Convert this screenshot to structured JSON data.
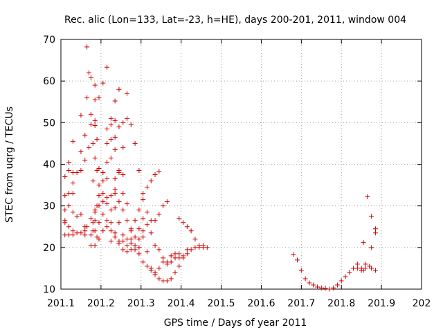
{
  "chart_data": {
    "type": "scatter",
    "title": "Rec. alic (Lon=133, Lat=-23, h=HE), days 200-201, 2011, window 004",
    "xlabel": "GPS time / Days of year 2011",
    "ylabel": "STEC from uqrg / TECUs",
    "xlim": [
      201.1,
      202
    ],
    "ylim": [
      10,
      70
    ],
    "x_ticks": [
      201.1,
      201.2,
      201.3,
      201.4,
      201.5,
      201.6,
      201.7,
      201.8,
      201.9,
      202
    ],
    "x_tick_labels": [
      "201.1",
      "201.2",
      "201.3",
      "201.4",
      "201.5",
      "201.6",
      "201.7",
      "201.8",
      "201.9",
      "202"
    ],
    "y_ticks": [
      10,
      20,
      30,
      40,
      50,
      60,
      70
    ],
    "y_tick_labels": [
      "10",
      "20",
      "30",
      "40",
      "50",
      "60",
      "70"
    ],
    "grid": true,
    "marker": "plus",
    "marker_color": "#cc0000",
    "points": [
      [
        201.11,
        37.0
      ],
      [
        201.11,
        32.5
      ],
      [
        201.11,
        29.0
      ],
      [
        201.11,
        26.5
      ],
      [
        201.11,
        26.0
      ],
      [
        201.11,
        23.0
      ],
      [
        201.12,
        40.5
      ],
      [
        201.12,
        38.5
      ],
      [
        201.12,
        33.0
      ],
      [
        201.12,
        30.0
      ],
      [
        201.12,
        25.0
      ],
      [
        201.12,
        23.0
      ],
      [
        201.13,
        45.5
      ],
      [
        201.13,
        38.0
      ],
      [
        201.13,
        35.5
      ],
      [
        201.13,
        33.0
      ],
      [
        201.13,
        28.5
      ],
      [
        201.13,
        24.0
      ],
      [
        201.13,
        23.0
      ],
      [
        201.14,
        38.0
      ],
      [
        201.14,
        27.5
      ],
      [
        201.14,
        23.5
      ],
      [
        201.15,
        51.8
      ],
      [
        201.15,
        43.0
      ],
      [
        201.15,
        38.5
      ],
      [
        201.15,
        28.0
      ],
      [
        201.15,
        23.5
      ],
      [
        201.16,
        47.0
      ],
      [
        201.16,
        41.0
      ],
      [
        201.16,
        25.0
      ],
      [
        201.16,
        24.0
      ],
      [
        201.16,
        23.0
      ],
      [
        201.165,
        68.2
      ],
      [
        201.165,
        56.0
      ],
      [
        201.165,
        25.0
      ],
      [
        201.17,
        62.0
      ],
      [
        201.17,
        44.0
      ],
      [
        201.175,
        60.8
      ],
      [
        201.175,
        52.0
      ],
      [
        201.175,
        49.5
      ],
      [
        201.175,
        27.0
      ],
      [
        201.175,
        23.0
      ],
      [
        201.175,
        20.5
      ],
      [
        201.18,
        45.0
      ],
      [
        201.18,
        36.0
      ],
      [
        201.18,
        26.0
      ],
      [
        201.18,
        24.0
      ],
      [
        201.185,
        59.0
      ],
      [
        201.185,
        55.5
      ],
      [
        201.185,
        50.5
      ],
      [
        201.185,
        49.3
      ],
      [
        201.185,
        41.5
      ],
      [
        201.185,
        29.0
      ],
      [
        201.185,
        28.5
      ],
      [
        201.185,
        26.5
      ],
      [
        201.185,
        24.0
      ],
      [
        201.185,
        20.5
      ],
      [
        201.19,
        46.0
      ],
      [
        201.19,
        38.5
      ],
      [
        201.19,
        30.0
      ],
      [
        201.19,
        22.5
      ],
      [
        201.195,
        56.0
      ],
      [
        201.195,
        39.0
      ],
      [
        201.195,
        35.0
      ],
      [
        201.195,
        32.5
      ],
      [
        201.195,
        30.0
      ],
      [
        201.195,
        26.0
      ],
      [
        201.195,
        22.0
      ],
      [
        201.205,
        59.5
      ],
      [
        201.205,
        38.0
      ],
      [
        201.205,
        36.0
      ],
      [
        201.205,
        33.0
      ],
      [
        201.205,
        31.0
      ],
      [
        201.205,
        28.0
      ],
      [
        201.205,
        24.0
      ],
      [
        201.215,
        63.3
      ],
      [
        201.215,
        48.5
      ],
      [
        201.215,
        45.0
      ],
      [
        201.215,
        40.5
      ],
      [
        201.215,
        36.5
      ],
      [
        201.215,
        32.0
      ],
      [
        201.215,
        30.5
      ],
      [
        201.215,
        26.5
      ],
      [
        201.215,
        25.0
      ],
      [
        201.225,
        51.0
      ],
      [
        201.225,
        49.5
      ],
      [
        201.225,
        46.0
      ],
      [
        201.225,
        41.5
      ],
      [
        201.225,
        32.5
      ],
      [
        201.225,
        29.0
      ],
      [
        201.225,
        26.0
      ],
      [
        201.225,
        24.0
      ],
      [
        201.225,
        21.5
      ],
      [
        201.235,
        55.2
      ],
      [
        201.235,
        50.5
      ],
      [
        201.235,
        46.5
      ],
      [
        201.235,
        43.5
      ],
      [
        201.235,
        36.5
      ],
      [
        201.235,
        34.0
      ],
      [
        201.235,
        33.0
      ],
      [
        201.235,
        29.5
      ],
      [
        201.235,
        23.5
      ],
      [
        201.235,
        22.5
      ],
      [
        201.245,
        58.0
      ],
      [
        201.245,
        49.0
      ],
      [
        201.245,
        38.5
      ],
      [
        201.245,
        38.0
      ],
      [
        201.245,
        31.0
      ],
      [
        201.245,
        26.0
      ],
      [
        201.245,
        21.5
      ],
      [
        201.245,
        21.0
      ],
      [
        201.255,
        50.0
      ],
      [
        201.255,
        44.0
      ],
      [
        201.255,
        37.5
      ],
      [
        201.255,
        33.0
      ],
      [
        201.255,
        29.0
      ],
      [
        201.255,
        23.0
      ],
      [
        201.255,
        21.5
      ],
      [
        201.255,
        19.5
      ],
      [
        201.265,
        57.0
      ],
      [
        201.265,
        51.0
      ],
      [
        201.265,
        30.5
      ],
      [
        201.265,
        26.5
      ],
      [
        201.265,
        22.0
      ],
      [
        201.265,
        20.5
      ],
      [
        201.265,
        19.0
      ],
      [
        201.275,
        49.5
      ],
      [
        201.275,
        24.5
      ],
      [
        201.275,
        24.0
      ],
      [
        201.275,
        22.0
      ],
      [
        201.275,
        21.0
      ],
      [
        201.275,
        19.5
      ],
      [
        201.285,
        45.0
      ],
      [
        201.285,
        26.5
      ],
      [
        201.285,
        22.5
      ],
      [
        201.285,
        20.5
      ],
      [
        201.285,
        19.5
      ],
      [
        201.295,
        38.5
      ],
      [
        201.295,
        29.0
      ],
      [
        201.295,
        24.5
      ],
      [
        201.295,
        22.0
      ],
      [
        201.295,
        20.0
      ],
      [
        201.295,
        18.5
      ],
      [
        201.305,
        33.0
      ],
      [
        201.305,
        31.5
      ],
      [
        201.305,
        27.0
      ],
      [
        201.305,
        24.0
      ],
      [
        201.305,
        22.5
      ],
      [
        201.305,
        16.5
      ],
      [
        201.315,
        34.5
      ],
      [
        201.315,
        28.5
      ],
      [
        201.315,
        25.5
      ],
      [
        201.315,
        19.0
      ],
      [
        201.315,
        15.5
      ],
      [
        201.325,
        36.0
      ],
      [
        201.325,
        26.5
      ],
      [
        201.325,
        23.5
      ],
      [
        201.325,
        15.0
      ],
      [
        201.325,
        14.5
      ],
      [
        201.335,
        37.5
      ],
      [
        201.335,
        26.5
      ],
      [
        201.335,
        20.5
      ],
      [
        201.335,
        14.0
      ],
      [
        201.335,
        13.5
      ],
      [
        201.345,
        38.3
      ],
      [
        201.345,
        28.0
      ],
      [
        201.345,
        19.5
      ],
      [
        201.345,
        15.0
      ],
      [
        201.345,
        12.5
      ],
      [
        201.355,
        30.0
      ],
      [
        201.355,
        17.5
      ],
      [
        201.355,
        16.5
      ],
      [
        201.355,
        12.0
      ],
      [
        201.365,
        31.0
      ],
      [
        201.365,
        16.5
      ],
      [
        201.365,
        16.0
      ],
      [
        201.365,
        12.0
      ],
      [
        201.375,
        18.0
      ],
      [
        201.375,
        16.5
      ],
      [
        201.375,
        12.5
      ],
      [
        201.385,
        18.5
      ],
      [
        201.385,
        17.5
      ],
      [
        201.385,
        14.0
      ],
      [
        201.395,
        27.0
      ],
      [
        201.395,
        18.5
      ],
      [
        201.395,
        17.5
      ],
      [
        201.395,
        15.5
      ],
      [
        201.405,
        26.0
      ],
      [
        201.405,
        18.0
      ],
      [
        201.405,
        17.5
      ],
      [
        201.415,
        25.0
      ],
      [
        201.415,
        19.5
      ],
      [
        201.415,
        18.5
      ],
      [
        201.425,
        24.0
      ],
      [
        201.425,
        19.5
      ],
      [
        201.435,
        22.0
      ],
      [
        201.435,
        20.0
      ],
      [
        201.445,
        20.5
      ],
      [
        201.445,
        20.0
      ],
      [
        201.455,
        20.5
      ],
      [
        201.455,
        20.0
      ],
      [
        201.465,
        20.0
      ],
      [
        201.68,
        18.3
      ],
      [
        201.69,
        17.0
      ],
      [
        201.7,
        14.5
      ],
      [
        201.71,
        12.5
      ],
      [
        201.72,
        11.5
      ],
      [
        201.73,
        11.0
      ],
      [
        201.74,
        10.5
      ],
      [
        201.75,
        10.3
      ],
      [
        201.76,
        10.2
      ],
      [
        201.77,
        10.0
      ],
      [
        201.78,
        10.3
      ],
      [
        201.79,
        11.0
      ],
      [
        201.8,
        12.0
      ],
      [
        201.81,
        13.0
      ],
      [
        201.82,
        14.0
      ],
      [
        201.83,
        15.0
      ],
      [
        201.84,
        16.0
      ],
      [
        201.84,
        15.0
      ],
      [
        201.85,
        15.0
      ],
      [
        201.85,
        14.5
      ],
      [
        201.855,
        21.2
      ],
      [
        201.855,
        14.5
      ],
      [
        201.86,
        16.0
      ],
      [
        201.86,
        15.0
      ],
      [
        201.865,
        32.2
      ],
      [
        201.87,
        15.5
      ],
      [
        201.875,
        27.5
      ],
      [
        201.875,
        20.0
      ],
      [
        201.875,
        15.0
      ],
      [
        201.885,
        24.5
      ],
      [
        201.885,
        23.5
      ],
      [
        201.885,
        14.5
      ]
    ]
  }
}
